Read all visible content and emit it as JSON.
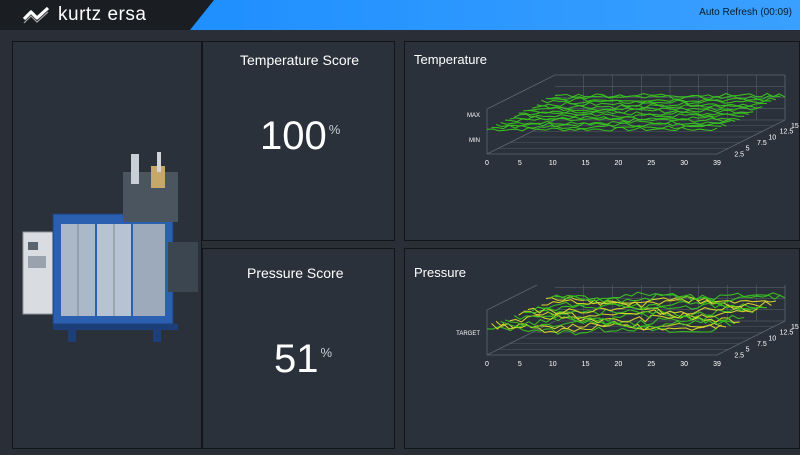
{
  "header": {
    "brand": "kurtz ersa",
    "auto_refresh": "Auto Refresh (00:09)"
  },
  "machine": {
    "image_icon": "machine-icon"
  },
  "temperature_score": {
    "title": "Temperature Score",
    "value": "100",
    "unit": "%"
  },
  "pressure_score": {
    "title": "Pressure Score",
    "value": "51",
    "unit": "%"
  },
  "temperature_chart": {
    "title": "Temperature",
    "y_labels": [
      "MAX",
      "MIN"
    ],
    "x_ticks": [
      "0",
      "5",
      "10",
      "15",
      "20",
      "25",
      "30",
      "39"
    ],
    "z_ticks": [
      "2.5",
      "5",
      "7.5",
      "10",
      "12.5",
      "15"
    ]
  },
  "pressure_chart": {
    "title": "Pressure",
    "y_labels": [
      "TARGET"
    ],
    "x_ticks": [
      "0",
      "5",
      "10",
      "15",
      "20",
      "25",
      "30",
      "39"
    ],
    "z_ticks": [
      "2.5",
      "5",
      "7.5",
      "10",
      "12.5",
      "15"
    ]
  },
  "colors": {
    "background": "#2a2f37",
    "header": "#1a1d22",
    "accent": "#2a9bff",
    "series_green": "#39c41f",
    "series_yellow": "#d8d82a"
  }
}
